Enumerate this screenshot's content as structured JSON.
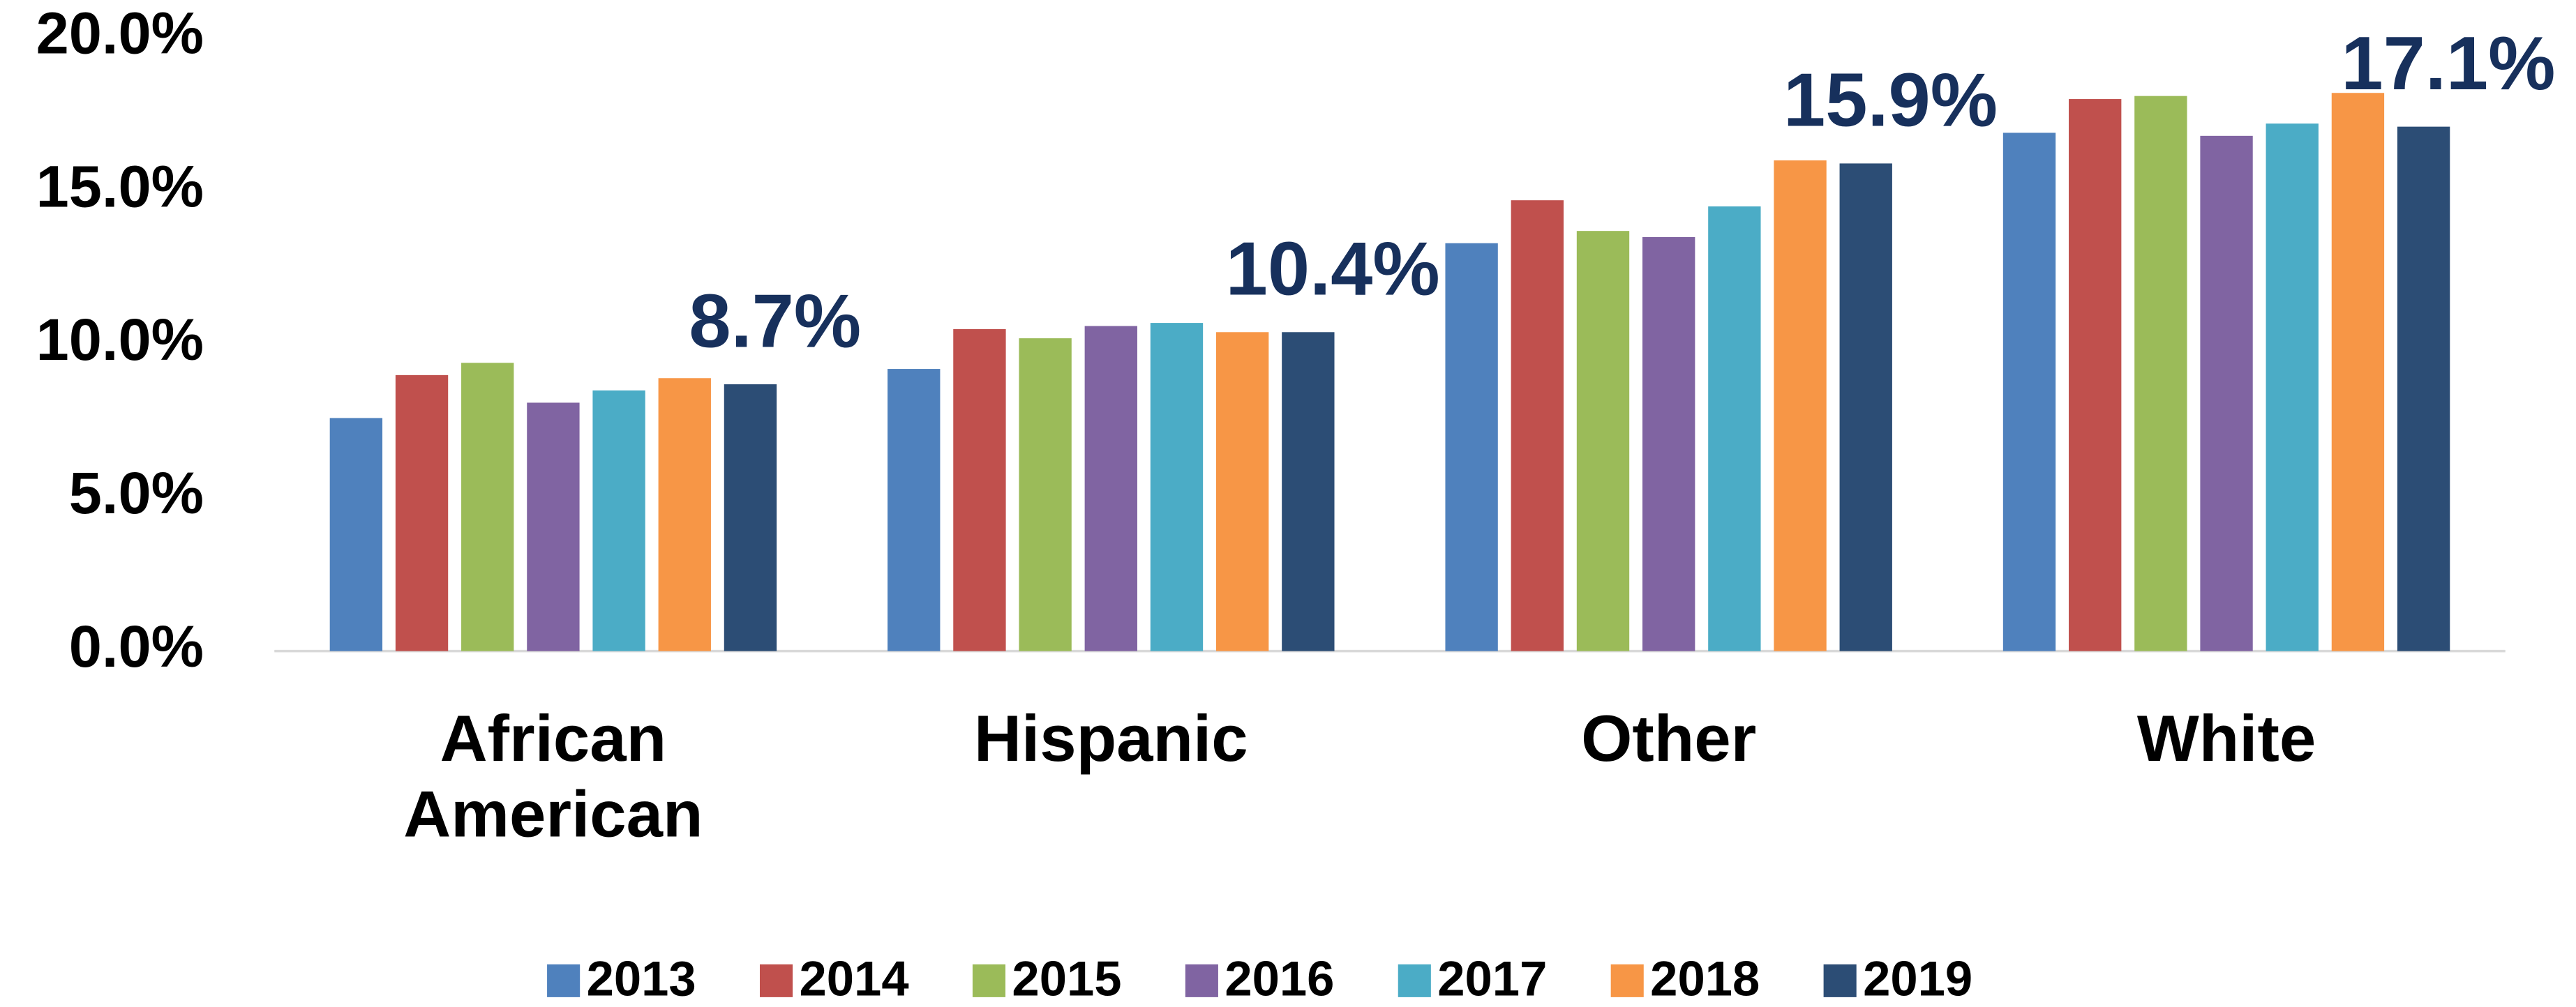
{
  "chart_data": {
    "type": "bar",
    "categories": [
      "African American",
      "Hispanic",
      "Other",
      "White"
    ],
    "series": [
      {
        "name": "2013",
        "color": "#4f81bd",
        "values": [
          7.6,
          9.2,
          13.3,
          16.9
        ]
      },
      {
        "name": "2014",
        "color": "#c0504d",
        "values": [
          9.0,
          10.5,
          14.7,
          18.0
        ]
      },
      {
        "name": "2015",
        "color": "#9bbb59",
        "values": [
          9.4,
          10.2,
          13.7,
          18.1
        ]
      },
      {
        "name": "2016",
        "color": "#8064a2",
        "values": [
          8.1,
          10.6,
          13.5,
          16.8
        ]
      },
      {
        "name": "2017",
        "color": "#4bacc6",
        "values": [
          8.5,
          10.7,
          14.5,
          17.2
        ]
      },
      {
        "name": "2018",
        "color": "#f79646",
        "values": [
          8.9,
          10.4,
          16.0,
          18.2
        ]
      },
      {
        "name": "2019",
        "color": "#2c4d75",
        "values": [
          8.7,
          10.4,
          15.9,
          17.1
        ],
        "value_labels": [
          "8.7%",
          "10.4%",
          "15.9%",
          "17.1%"
        ]
      }
    ],
    "value_label_color": "#17305c",
    "ylim": [
      0,
      20
    ],
    "yticks": [
      {
        "value": 0,
        "label": "0.0%"
      },
      {
        "value": 5,
        "label": "5.0%"
      },
      {
        "value": 10,
        "label": "10.0%"
      },
      {
        "value": 15,
        "label": "15.0%"
      },
      {
        "value": 20,
        "label": "20.0%"
      }
    ],
    "grid": false,
    "legend": "bottom"
  }
}
